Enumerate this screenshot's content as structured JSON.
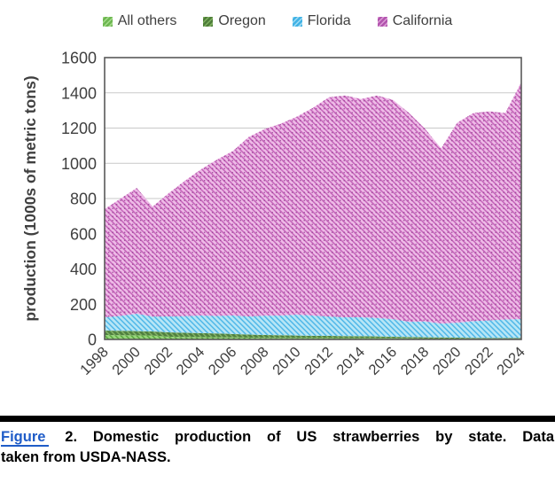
{
  "legend": {
    "items": [
      {
        "label": "All others",
        "base": "#6db651",
        "stripe": "#a5dc8b"
      },
      {
        "label": "Oregon",
        "base": "#4e7d39",
        "stripe": "#7fb161"
      },
      {
        "label": "Florida",
        "base": "#41b2e5",
        "stripe": "#9fdcf4"
      },
      {
        "label": "California",
        "base": "#b254ae",
        "stripe": "#dc9cd6"
      }
    ]
  },
  "chart_data": {
    "type": "area",
    "stacked": true,
    "title": "",
    "xlabel": "",
    "ylabel": "production (1000s of metric tons)",
    "ylim": [
      0,
      1600
    ],
    "y_ticks": [
      0,
      200,
      400,
      600,
      800,
      1000,
      1200,
      1400,
      1600
    ],
    "grid": true,
    "legend_position": "top",
    "x": [
      1998,
      1999,
      2000,
      2001,
      2002,
      2003,
      2004,
      2005,
      2006,
      2007,
      2008,
      2009,
      2010,
      2011,
      2012,
      2013,
      2014,
      2015,
      2016,
      2017,
      2018,
      2019,
      2020,
      2021,
      2022,
      2023,
      2024
    ],
    "x_tick_labels": [
      "1998",
      "2000",
      "2002",
      "2004",
      "2006",
      "2008",
      "2010",
      "2012",
      "2014",
      "2016",
      "2018",
      "2020",
      "2022",
      "2024"
    ],
    "series": [
      {
        "name": "All others",
        "fill": "#98d77d",
        "hatch": "#5ba73f",
        "values": [
          25,
          24,
          23,
          22,
          15,
          14,
          13,
          12,
          11,
          10,
          9,
          9,
          8,
          8,
          8,
          7,
          7,
          7,
          6,
          6,
          5,
          5,
          5,
          4,
          4,
          4,
          4
        ]
      },
      {
        "name": "Oregon",
        "fill": "#4f8040",
        "hatch": "#83b264",
        "values": [
          25,
          25,
          24,
          23,
          25,
          24,
          23,
          22,
          20,
          18,
          16,
          15,
          14,
          13,
          12,
          12,
          11,
          10,
          9,
          8,
          7,
          6,
          5,
          5,
          4,
          4,
          4
        ]
      },
      {
        "name": "Florida",
        "fill": "#b7e6f6",
        "hatch": "#4fb7e8",
        "values": [
          76,
          85,
          99,
          85,
          91,
          95,
          100,
          100,
          105,
          103,
          110,
          112,
          119,
          115,
          110,
          107,
          108,
          105,
          100,
          86,
          90,
          79,
          85,
          95,
          100,
          105,
          108
        ]
      },
      {
        "name": "California",
        "fill": "#eebbe7",
        "hatch": "#c564ba",
        "dots": "#983f92",
        "values": [
          614,
          666,
          714,
          625,
          699,
          767,
          829,
          886,
          934,
          1019,
          1060,
          1089,
          1124,
          1179,
          1245,
          1259,
          1239,
          1263,
          1245,
          1185,
          1093,
          995,
          1135,
          1181,
          1187,
          1172,
          1344
        ]
      }
    ],
    "colors": {
      "plot_border": "#595959",
      "gridline": "#c9c9c9",
      "axis_text": "#3f3f3f"
    }
  },
  "caption": {
    "link_text": "Figure",
    "line1": "2. Domestic production of US strawberries by state. Data",
    "line2": "taken from USDA-NASS."
  }
}
